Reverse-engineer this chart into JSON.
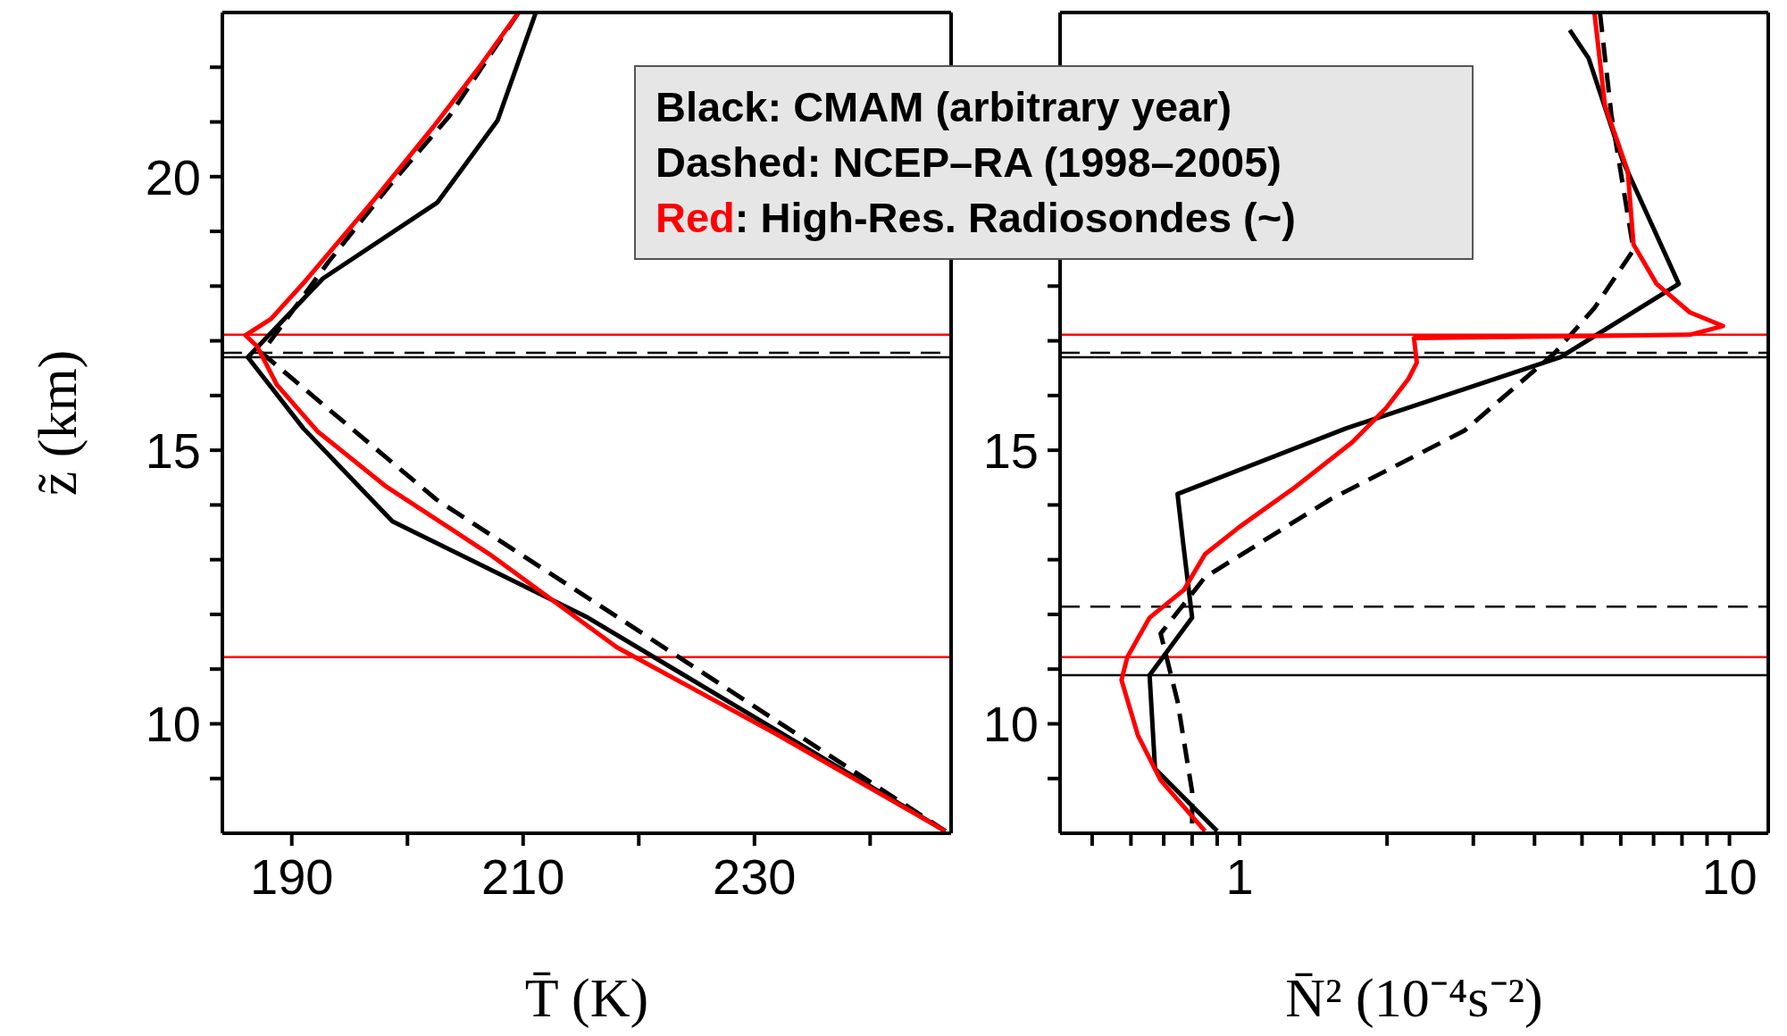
{
  "chart_data": [
    {
      "type": "line",
      "xlabel": "T̄ (K)",
      "ylabel": "z̃ (km)",
      "xlim": [
        184,
        247
      ],
      "xticks": [
        190,
        {
          "value": 200,
          "label": null
        },
        210,
        {
          "value": 220,
          "label": null
        },
        230,
        {
          "value": 240,
          "label": null
        }
      ],
      "ylim": [
        8,
        23
      ],
      "yticks": [
        {
          "value": 9,
          "label": null
        },
        10,
        {
          "value": 11,
          "label": null
        },
        {
          "value": 12,
          "label": null
        },
        {
          "value": 13,
          "label": null
        },
        {
          "value": 14,
          "label": null
        },
        15,
        {
          "value": 16,
          "label": null
        },
        {
          "value": 17,
          "label": null
        },
        {
          "value": 18,
          "label": null
        },
        {
          "value": 19,
          "label": null
        },
        20,
        {
          "value": 21,
          "label": null
        },
        {
          "value": 22,
          "label": null
        }
      ],
      "grid": false,
      "legend": false,
      "marker": "none",
      "annotations": [
        "Black: CMAM (arbitrary year)",
        "Dashed: NCEP–RA (1998–2005)",
        "Red: High-Res. Radiosondes (~)"
      ],
      "series": [
        {
          "color": "#000000",
          "line_style": "solid",
          "x": [
            211.1,
            207.8,
            202.6,
            192.7,
            186.2,
            191,
            198.7,
            215.6,
            246.5
          ],
          "values": [
            23,
            21.03,
            19.53,
            18.14,
            16.7,
            15.4,
            13.7,
            11.94,
            8.04
          ]
        },
        {
          "color": "#000000",
          "line_style": "dashed",
          "x": [
            209.6,
            203.6,
            198.7,
            193.2,
            187.4,
            194.2,
            202.5,
            217.8,
            246.5
          ],
          "values": [
            23,
            21.1,
            19.9,
            18.45,
            16.78,
            15.57,
            14.1,
            12,
            8.04
          ]
        },
        {
          "color": "#ff0000",
          "line_style": "solid",
          "x": [
            209.6,
            206.1,
            202.2,
            197.2,
            191.2,
            188.2,
            186,
            187,
            188.7,
            192.2,
            198.2,
            207.1,
            218.1,
            232,
            246.5
          ],
          "values": [
            23,
            21.97,
            20.9,
            19.6,
            18.1,
            17.4,
            17.1,
            16.9,
            16.2,
            15.35,
            14.33,
            13.1,
            11.4,
            9.8,
            8.04
          ]
        }
      ],
      "ref_lines": [
        {
          "axis": "y",
          "value": 17.11,
          "color": "#ff0000",
          "line_style": "solid"
        },
        {
          "axis": "y",
          "value": 16.78,
          "color": "#000000",
          "line_style": "dashed"
        },
        {
          "axis": "y",
          "value": 16.7,
          "color": "#000000",
          "line_style": "solid"
        },
        {
          "axis": "y",
          "value": 11.22,
          "color": "#ff0000",
          "line_style": "solid"
        }
      ]
    },
    {
      "type": "line",
      "xlabel": "N̄² (10⁻⁴s⁻²)",
      "log": "x",
      "xlim": [
        0.43,
        12
      ],
      "xticks": [
        {
          "value": 0.5,
          "label": null
        },
        {
          "value": 0.6,
          "label": null
        },
        {
          "value": 0.7,
          "label": null
        },
        {
          "value": 0.8,
          "label": null
        },
        {
          "value": 0.9,
          "label": null
        },
        1,
        {
          "value": 2,
          "label": null
        },
        {
          "value": 3,
          "label": null
        },
        {
          "value": 4,
          "label": null
        },
        {
          "value": 5,
          "label": null
        },
        {
          "value": 6,
          "label": null
        },
        {
          "value": 7,
          "label": null
        },
        {
          "value": 8,
          "label": null
        },
        {
          "value": 9,
          "label": null
        },
        10
      ],
      "ylim": [
        8,
        23
      ],
      "yticks": [
        {
          "value": 9,
          "label": null
        },
        10,
        {
          "value": 11,
          "label": null
        },
        {
          "value": 12,
          "label": null
        },
        {
          "value": 13,
          "label": null
        },
        {
          "value": 14,
          "label": null
        },
        15,
        {
          "value": 16,
          "label": null
        },
        {
          "value": 17,
          "label": null
        },
        {
          "value": 18,
          "label": null
        },
        {
          "value": 19,
          "label": null
        },
        {
          "value": 20,
          "label": null
        },
        {
          "value": 21,
          "label": null
        },
        {
          "value": 22,
          "label": null
        }
      ],
      "grid": false,
      "legend": false,
      "marker": "none",
      "series": [
        {
          "color": "#000000",
          "line_style": "solid",
          "x": [
            4.72,
            5.16,
            6.05,
            7.88,
            4.52,
            1.65,
            0.747,
            0.767,
            0.8,
            0.655,
            0.672,
            0.9
          ],
          "values": [
            22.68,
            22.16,
            20.3,
            18.04,
            16.7,
            15.4,
            14.2,
            13.3,
            11.94,
            10.89,
            9.18,
            8.04
          ]
        },
        {
          "color": "#000000",
          "line_style": "dashed",
          "x": [
            5.44,
            5.74,
            6.37,
            5.3,
            4.4,
            2.88,
            1.53,
            0.85,
            0.69,
            0.747,
            0.8,
            0.8
          ],
          "values": [
            23,
            21.13,
            18.66,
            17.6,
            16.78,
            15.36,
            14.1,
            12.68,
            11.65,
            10.41,
            8.76,
            8.04
          ]
        },
        {
          "color": "#ff0000",
          "line_style": "solid",
          "x": [
            5.3,
            5.57,
            6.2,
            6.37,
            7.1,
            8.3,
            9.7,
            8.3,
            2.27,
            2.3,
            2.21,
            1.99,
            1.7,
            1.3,
            1,
            0.85,
            0.77,
            0.655,
            0.59,
            0.574,
            0.62,
            0.69,
            0.85
          ],
          "values": [
            23,
            21.3,
            20.1,
            18.76,
            18.04,
            17.52,
            17.27,
            17.11,
            17.05,
            16.6,
            16.3,
            15.77,
            15.15,
            14.33,
            13.6,
            13.1,
            12.45,
            11.94,
            11.22,
            10.8,
            9.79,
            8.97,
            8.04
          ]
        }
      ],
      "ref_lines": [
        {
          "axis": "y",
          "value": 17.11,
          "color": "#ff0000",
          "line_style": "solid"
        },
        {
          "axis": "y",
          "value": 16.78,
          "color": "#000000",
          "line_style": "dashed"
        },
        {
          "axis": "y",
          "value": 16.7,
          "color": "#000000",
          "line_style": "solid"
        },
        {
          "axis": "y",
          "value": 12.14,
          "color": "#000000",
          "line_style": "dashed"
        },
        {
          "axis": "y",
          "value": 11.22,
          "color": "#ff0000",
          "line_style": "solid"
        },
        {
          "axis": "y",
          "value": 10.89,
          "color": "#000000",
          "line_style": "solid"
        }
      ]
    }
  ]
}
